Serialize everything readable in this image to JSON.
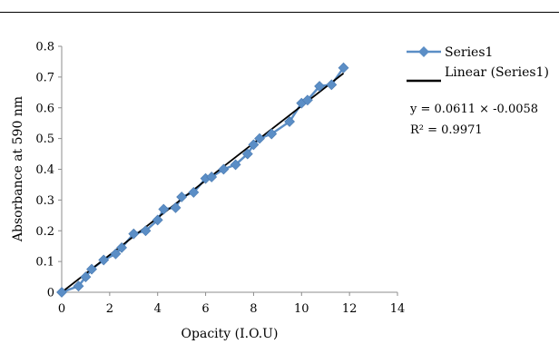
{
  "chart_data": {
    "type": "scatter",
    "xlabel": "Opacity (I.O.U)",
    "ylabel": "Absorbance at 590 nm",
    "xlim": [
      0,
      14
    ],
    "ylim": [
      0,
      0.8
    ],
    "x_ticks": [
      0,
      2,
      4,
      6,
      8,
      10,
      12,
      14
    ],
    "y_ticks": [
      0,
      0.1,
      0.2,
      0.3,
      0.4,
      0.5,
      0.6,
      0.7,
      0.8
    ],
    "x_tick_labels": [
      "0",
      "2",
      "4",
      "6",
      "8",
      "10",
      "12",
      "14"
    ],
    "y_tick_labels": [
      "0",
      "0.1",
      "0.2",
      "0.3",
      "0.4",
      "0.5",
      "0.6",
      "0.7",
      "0.8"
    ],
    "grid": false,
    "legend_position": "right",
    "series": [
      {
        "name": "Series1",
        "color": "#5b8ec6",
        "marker": "diamond",
        "x": [
          0.0,
          0.7,
          1.0,
          1.25,
          1.75,
          2.25,
          2.5,
          3.0,
          3.5,
          4.0,
          4.25,
          4.75,
          5.0,
          5.5,
          6.0,
          6.25,
          6.75,
          7.25,
          7.75,
          8.0,
          8.25,
          8.75,
          9.5,
          10.0,
          10.25,
          10.75,
          11.25,
          11.75
        ],
        "y": [
          0.0,
          0.02,
          0.05,
          0.075,
          0.105,
          0.125,
          0.145,
          0.19,
          0.2,
          0.235,
          0.27,
          0.275,
          0.31,
          0.325,
          0.37,
          0.375,
          0.4,
          0.415,
          0.45,
          0.48,
          0.5,
          0.515,
          0.555,
          0.615,
          0.625,
          0.67,
          0.675,
          0.73
        ]
      }
    ],
    "trendline": {
      "name": "Linear (Series1)",
      "color": "#000000",
      "slope": 0.0611,
      "intercept": -0.0058,
      "x_range": [
        0,
        11.75
      ]
    },
    "equation_text": "y = 0.0611 × -0.0058",
    "r2_text": "R² = 0.9971"
  }
}
